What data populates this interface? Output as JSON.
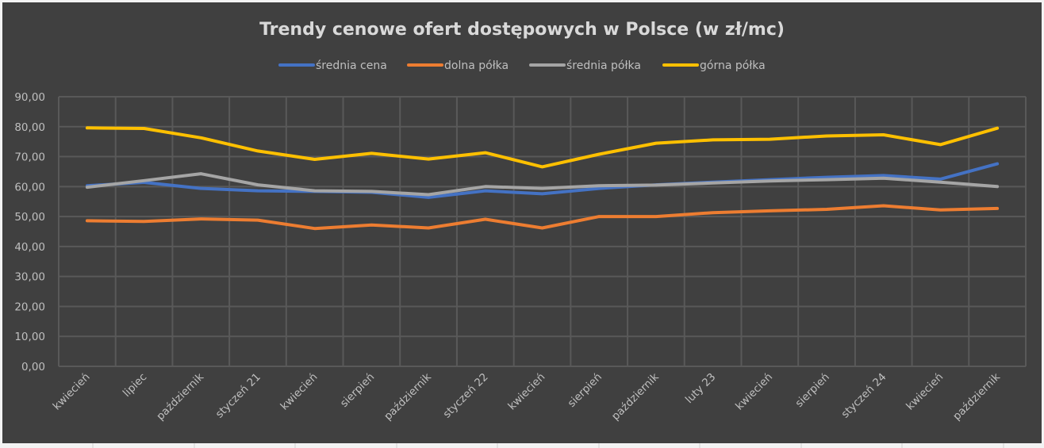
{
  "chart_data": {
    "type": "line",
    "title": "Trendy cenowe ofert dostępowych w Polsce (w zł/mc)",
    "xlabel": "",
    "ylabel": "",
    "ylim": [
      0,
      90
    ],
    "yticks": [
      "0,00",
      "10,00",
      "20,00",
      "30,00",
      "40,00",
      "50,00",
      "60,00",
      "70,00",
      "80,00",
      "90,00"
    ],
    "ytick_values": [
      0,
      10,
      20,
      30,
      40,
      50,
      60,
      70,
      80,
      90
    ],
    "grid": true,
    "legend_position": "top",
    "categories": [
      "kwiecień",
      "lipiec",
      "październik",
      "styczeń 21",
      "kwiecień",
      "sierpień",
      "październik",
      "styczeń 22",
      "kwiecień",
      "sierpień",
      "październik",
      "luty 23",
      "kwiecień",
      "sierpień",
      "styczeń 24",
      "kwiecień",
      "październik"
    ],
    "series": [
      {
        "name": "średnia cena",
        "color": "#4472c4",
        "values": [
          60.3,
          61.4,
          59.4,
          58.6,
          58.4,
          58.1,
          56.4,
          58.6,
          57.6,
          59.4,
          60.6,
          61.5,
          62.3,
          63.1,
          63.7,
          62.5,
          67.6
        ]
      },
      {
        "name": "dolna półka",
        "color": "#ed7d31",
        "values": [
          48.6,
          48.4,
          49.2,
          48.8,
          46.0,
          47.2,
          46.2,
          49.1,
          46.2,
          50.0,
          50.0,
          51.3,
          51.9,
          52.4,
          53.6,
          52.2,
          52.7
        ]
      },
      {
        "name": "średnia półka",
        "color": "#a5a5a5",
        "values": [
          59.8,
          62.0,
          64.3,
          60.6,
          58.6,
          58.4,
          57.3,
          60.0,
          59.4,
          60.3,
          60.5,
          61.2,
          61.9,
          62.3,
          62.8,
          61.5,
          60.0
        ]
      },
      {
        "name": "górna półka",
        "color": "#ffc000",
        "values": [
          79.6,
          79.4,
          76.3,
          71.9,
          69.1,
          71.1,
          69.2,
          71.3,
          66.6,
          70.8,
          74.5,
          75.6,
          75.8,
          76.9,
          77.3,
          74.0,
          79.5
        ]
      }
    ]
  }
}
